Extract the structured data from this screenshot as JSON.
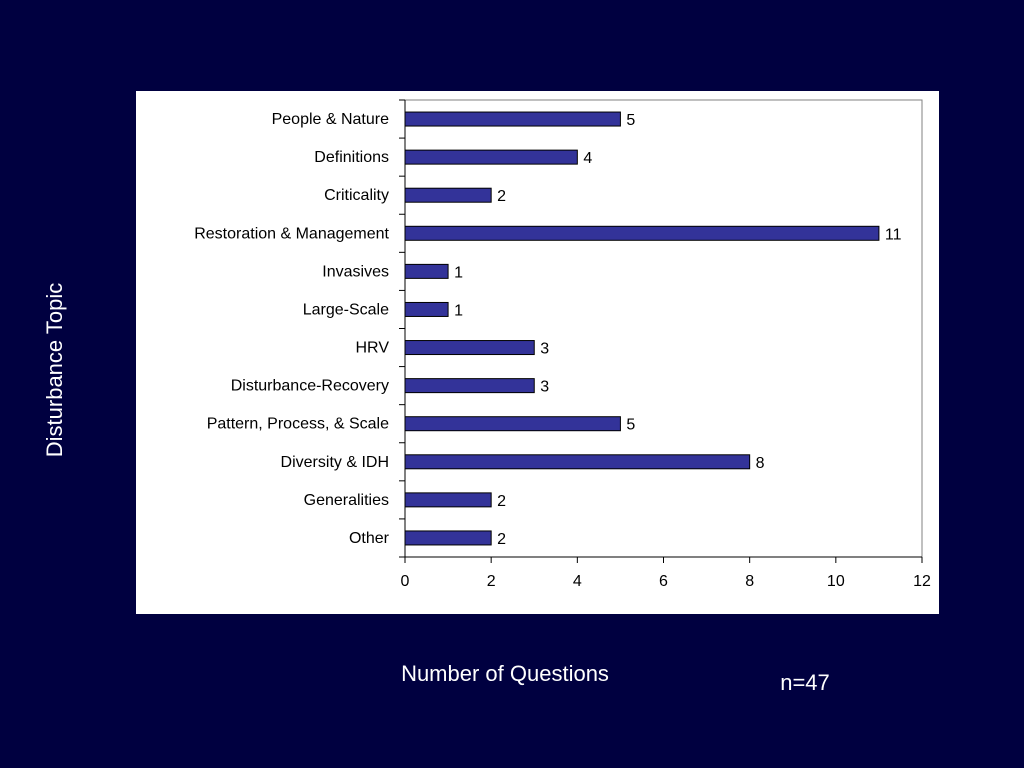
{
  "chart_data": {
    "type": "bar",
    "orientation": "horizontal",
    "categories": [
      "People & Nature",
      "Definitions",
      "Criticality",
      "Restoration & Management",
      "Invasives",
      "Large-Scale",
      "HRV",
      "Disturbance-Recovery",
      "Pattern, Process, & Scale",
      "Diversity & IDH",
      "Generalities",
      "Other"
    ],
    "values": [
      5,
      4,
      2,
      11,
      1,
      1,
      3,
      3,
      5,
      8,
      2,
      2
    ],
    "xlabel": "Number of Questions",
    "ylabel": "Disturbance Topic",
    "xlim": [
      0,
      12
    ],
    "xticks": [
      0,
      2,
      4,
      6,
      8,
      10,
      12
    ],
    "data_labels": true,
    "grid": false,
    "legend": "none",
    "annotation": "n=47",
    "bar_color": "#333399",
    "bar_edge_color": "#000000",
    "plot_background": "#ffffff",
    "page_background": "#000040"
  }
}
